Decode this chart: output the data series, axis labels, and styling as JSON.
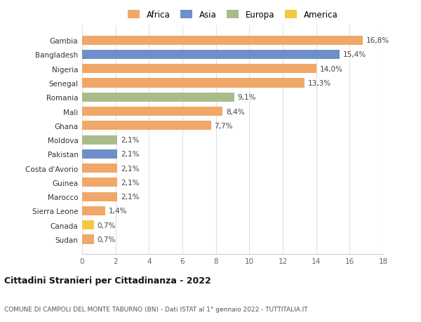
{
  "categories": [
    "Sudan",
    "Canada",
    "Sierra Leone",
    "Marocco",
    "Guinea",
    "Costa d'Avorio",
    "Pakistan",
    "Moldova",
    "Ghana",
    "Mali",
    "Romania",
    "Senegal",
    "Nigeria",
    "Bangladesh",
    "Gambia"
  ],
  "values": [
    0.7,
    0.7,
    1.4,
    2.1,
    2.1,
    2.1,
    2.1,
    2.1,
    7.7,
    8.4,
    9.1,
    13.3,
    14.0,
    15.4,
    16.8
  ],
  "labels": [
    "0,7%",
    "0,7%",
    "1,4%",
    "2,1%",
    "2,1%",
    "2,1%",
    "2,1%",
    "2,1%",
    "7,7%",
    "8,4%",
    "9,1%",
    "13,3%",
    "14,0%",
    "15,4%",
    "16,8%"
  ],
  "colors": [
    "#f0a868",
    "#f5c842",
    "#f0a868",
    "#f0a868",
    "#f0a868",
    "#f0a868",
    "#6e8fc9",
    "#a8bc8a",
    "#f0a868",
    "#f0a868",
    "#a8bc8a",
    "#f0a868",
    "#f0a868",
    "#6e8fc9",
    "#f0a868"
  ],
  "legend_labels": [
    "Africa",
    "Asia",
    "Europa",
    "America"
  ],
  "legend_colors": [
    "#f0a868",
    "#6e8fc9",
    "#a8bc8a",
    "#f5c842"
  ],
  "title_main": "Cittadini Stranieri per Cittadinanza - 2022",
  "title_sub": "COMUNE DI CAMPOLI DEL MONTE TABURNO (BN) - Dati ISTAT al 1° gennaio 2022 - TUTTITALIA.IT",
  "xlim": [
    0,
    18
  ],
  "xticks": [
    0,
    2,
    4,
    6,
    8,
    10,
    12,
    14,
    16,
    18
  ],
  "background_color": "#ffffff",
  "grid_color": "#e0e0e0"
}
